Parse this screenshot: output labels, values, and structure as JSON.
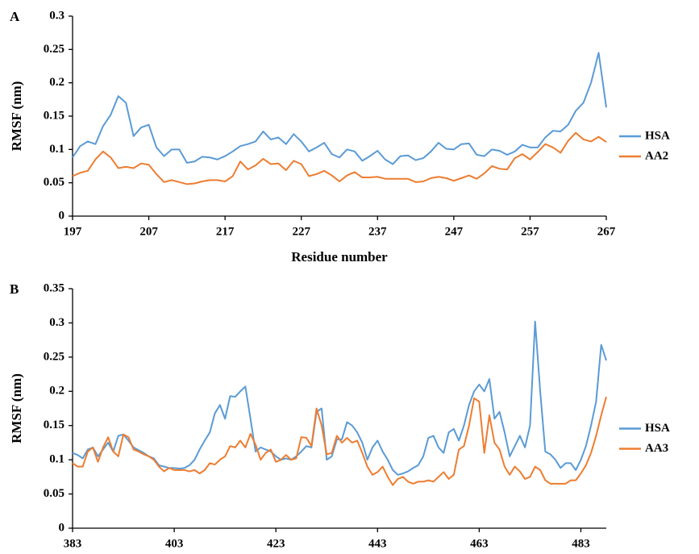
{
  "chart_data": [
    {
      "type": "line",
      "panel_label": "A",
      "xlabel": "Residue number",
      "ylabel": "RMSF (nm)",
      "x": [
        197,
        198,
        199,
        200,
        201,
        202,
        203,
        204,
        205,
        206,
        207,
        208,
        209,
        210,
        211,
        212,
        213,
        214,
        215,
        216,
        217,
        218,
        219,
        220,
        221,
        222,
        223,
        224,
        225,
        226,
        227,
        228,
        229,
        230,
        231,
        232,
        233,
        234,
        235,
        236,
        237,
        238,
        239,
        240,
        241,
        242,
        243,
        244,
        245,
        246,
        247,
        248,
        249,
        250,
        251,
        252,
        253,
        254,
        255,
        256,
        257,
        258,
        259,
        260,
        261,
        262,
        263,
        264,
        265,
        266,
        267
      ],
      "series": [
        {
          "name": "HSA",
          "color": "#5b9bd5",
          "values": [
            0.088,
            0.105,
            0.112,
            0.108,
            0.135,
            0.152,
            0.18,
            0.17,
            0.12,
            0.133,
            0.137,
            0.103,
            0.09,
            0.1,
            0.1,
            0.08,
            0.082,
            0.089,
            0.088,
            0.085,
            0.09,
            0.097,
            0.105,
            0.108,
            0.112,
            0.127,
            0.115,
            0.118,
            0.108,
            0.123,
            0.112,
            0.097,
            0.103,
            0.11,
            0.093,
            0.088,
            0.1,
            0.097,
            0.083,
            0.09,
            0.098,
            0.085,
            0.078,
            0.09,
            0.091,
            0.084,
            0.087,
            0.097,
            0.11,
            0.101,
            0.1,
            0.108,
            0.109,
            0.092,
            0.09,
            0.1,
            0.098,
            0.092,
            0.097,
            0.107,
            0.103,
            0.103,
            0.118,
            0.128,
            0.127,
            0.137,
            0.158,
            0.17,
            0.2,
            0.245,
            0.163
          ]
        },
        {
          "name": "AA2",
          "color": "#ed7d31",
          "values": [
            0.06,
            0.065,
            0.068,
            0.085,
            0.097,
            0.088,
            0.072,
            0.074,
            0.072,
            0.079,
            0.077,
            0.063,
            0.051,
            0.054,
            0.051,
            0.048,
            0.049,
            0.052,
            0.054,
            0.054,
            0.052,
            0.06,
            0.082,
            0.07,
            0.076,
            0.086,
            0.078,
            0.079,
            0.069,
            0.083,
            0.078,
            0.06,
            0.063,
            0.068,
            0.061,
            0.052,
            0.061,
            0.066,
            0.058,
            0.058,
            0.059,
            0.056,
            0.056,
            0.056,
            0.056,
            0.051,
            0.052,
            0.057,
            0.059,
            0.057,
            0.053,
            0.057,
            0.061,
            0.056,
            0.064,
            0.075,
            0.071,
            0.07,
            0.087,
            0.093,
            0.085,
            0.096,
            0.108,
            0.103,
            0.095,
            0.113,
            0.125,
            0.115,
            0.112,
            0.119,
            0.111
          ]
        }
      ],
      "xlim": [
        197,
        267
      ],
      "xticks": [
        197,
        207,
        217,
        227,
        237,
        247,
        257,
        267
      ],
      "ylim": [
        0,
        0.3
      ],
      "yticks": [
        0,
        0.05,
        0.1,
        0.15,
        0.2,
        0.25,
        0.3
      ],
      "grid": false,
      "legend": "right"
    },
    {
      "type": "line",
      "panel_label": "B",
      "xlabel": "Residue number",
      "ylabel": "RMSF (nm)",
      "x": [
        383,
        384,
        385,
        386,
        387,
        388,
        389,
        390,
        391,
        392,
        393,
        394,
        395,
        396,
        397,
        398,
        399,
        400,
        401,
        402,
        403,
        404,
        405,
        406,
        407,
        408,
        409,
        410,
        411,
        412,
        413,
        414,
        415,
        416,
        417,
        418,
        419,
        420,
        421,
        422,
        423,
        424,
        425,
        426,
        427,
        428,
        429,
        430,
        431,
        432,
        433,
        434,
        435,
        436,
        437,
        438,
        439,
        440,
        441,
        442,
        443,
        444,
        445,
        446,
        447,
        448,
        449,
        450,
        451,
        452,
        453,
        454,
        455,
        456,
        457,
        458,
        459,
        460,
        461,
        462,
        463,
        464,
        465,
        466,
        467,
        468,
        469,
        470,
        471,
        472,
        473,
        474,
        475,
        476,
        477,
        478,
        479,
        480,
        481,
        482,
        483,
        484,
        485,
        486,
        487,
        488
      ],
      "series": [
        {
          "name": "HSA",
          "color": "#5b9bd5",
          "values": [
            0.11,
            0.107,
            0.102,
            0.115,
            0.118,
            0.105,
            0.115,
            0.125,
            0.112,
            0.135,
            0.137,
            0.128,
            0.118,
            0.114,
            0.11,
            0.105,
            0.102,
            0.092,
            0.09,
            0.088,
            0.088,
            0.087,
            0.088,
            0.092,
            0.1,
            0.115,
            0.128,
            0.14,
            0.168,
            0.18,
            0.16,
            0.193,
            0.192,
            0.2,
            0.207,
            0.16,
            0.112,
            0.118,
            0.115,
            0.112,
            0.105,
            0.1,
            0.102,
            0.1,
            0.105,
            0.112,
            0.12,
            0.118,
            0.17,
            0.175,
            0.1,
            0.105,
            0.13,
            0.13,
            0.155,
            0.15,
            0.14,
            0.125,
            0.1,
            0.118,
            0.128,
            0.112,
            0.1,
            0.085,
            0.078,
            0.08,
            0.083,
            0.088,
            0.092,
            0.105,
            0.132,
            0.135,
            0.118,
            0.11,
            0.14,
            0.145,
            0.128,
            0.15,
            0.18,
            0.2,
            0.21,
            0.2,
            0.218,
            0.16,
            0.17,
            0.14,
            0.105,
            0.12,
            0.135,
            0.118,
            0.15,
            0.302,
            0.2,
            0.112,
            0.108,
            0.1,
            0.088,
            0.095,
            0.095,
            0.085,
            0.1,
            0.12,
            0.15,
            0.185,
            0.268,
            0.245
          ]
        },
        {
          "name": "AA3",
          "color": "#ed7d31",
          "values": [
            0.095,
            0.09,
            0.09,
            0.112,
            0.118,
            0.097,
            0.118,
            0.133,
            0.112,
            0.105,
            0.137,
            0.133,
            0.115,
            0.112,
            0.108,
            0.105,
            0.1,
            0.09,
            0.083,
            0.088,
            0.085,
            0.085,
            0.085,
            0.083,
            0.085,
            0.08,
            0.085,
            0.095,
            0.093,
            0.1,
            0.105,
            0.12,
            0.118,
            0.128,
            0.118,
            0.138,
            0.122,
            0.1,
            0.11,
            0.115,
            0.097,
            0.1,
            0.107,
            0.1,
            0.102,
            0.133,
            0.132,
            0.12,
            0.175,
            0.15,
            0.108,
            0.11,
            0.135,
            0.125,
            0.132,
            0.125,
            0.128,
            0.11,
            0.09,
            0.078,
            0.082,
            0.09,
            0.075,
            0.063,
            0.072,
            0.075,
            0.068,
            0.065,
            0.068,
            0.068,
            0.07,
            0.068,
            0.075,
            0.082,
            0.072,
            0.078,
            0.115,
            0.12,
            0.15,
            0.19,
            0.185,
            0.11,
            0.165,
            0.125,
            0.115,
            0.09,
            0.078,
            0.09,
            0.083,
            0.072,
            0.075,
            0.09,
            0.085,
            0.07,
            0.065,
            0.065,
            0.065,
            0.065,
            0.07,
            0.07,
            0.08,
            0.092,
            0.11,
            0.135,
            0.165,
            0.192
          ]
        }
      ],
      "xlim": [
        383,
        488
      ],
      "xticks": [
        383,
        403,
        423,
        443,
        463,
        483
      ],
      "ylim": [
        0,
        0.35
      ],
      "yticks": [
        0,
        0.05,
        0.1,
        0.15,
        0.2,
        0.25,
        0.3,
        0.35
      ],
      "grid": false,
      "legend": "right"
    }
  ]
}
